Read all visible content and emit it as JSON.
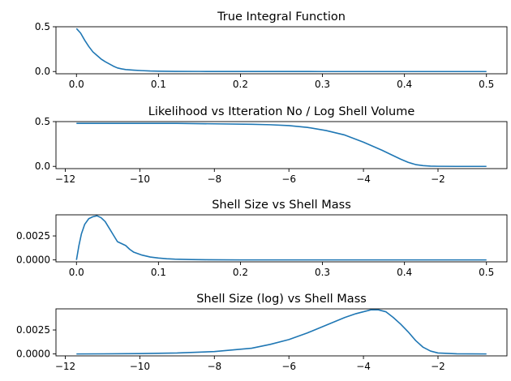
{
  "chart_data": [
    {
      "type": "line",
      "title": "True Integral Function",
      "xlabel": "",
      "ylabel": "",
      "xlim": [
        -0.025,
        0.525
      ],
      "ylim": [
        -0.025,
        0.5
      ],
      "xticks": [
        0.0,
        0.1,
        0.2,
        0.3,
        0.4,
        0.5
      ],
      "xtick_labels": [
        "0.0",
        "0.1",
        "0.2",
        "0.3",
        "0.4",
        "0.5"
      ],
      "yticks": [
        0.0,
        0.5
      ],
      "ytick_labels": [
        "0.0",
        "0.5"
      ],
      "grid": false,
      "color": "#1f77b4",
      "series": [
        {
          "x": [
            0.0,
            0.005,
            0.01,
            0.015,
            0.02,
            0.025,
            0.03,
            0.035,
            0.04,
            0.045,
            0.05,
            0.055,
            0.06,
            0.07,
            0.08,
            0.09,
            0.1,
            0.12,
            0.15,
            0.2,
            0.3,
            0.4,
            0.5
          ],
          "y": [
            0.48,
            0.43,
            0.35,
            0.28,
            0.22,
            0.18,
            0.14,
            0.11,
            0.085,
            0.06,
            0.04,
            0.03,
            0.022,
            0.015,
            0.01,
            0.006,
            0.004,
            0.002,
            0.001,
            0.0005,
            0.0,
            0.0,
            0.0
          ]
        }
      ]
    },
    {
      "type": "line",
      "title": "Likelihood vs Itteration No / Log Shell Volume",
      "xlabel": "",
      "ylabel": "",
      "xlim": [
        -12.25,
        -0.15
      ],
      "ylim": [
        -0.025,
        0.5
      ],
      "xticks": [
        -12,
        -10,
        -8,
        -6,
        -4,
        -2
      ],
      "xtick_labels": [
        "−12",
        "−10",
        "−8",
        "−6",
        "−4",
        "−2"
      ],
      "yticks": [
        0.0,
        0.5
      ],
      "ytick_labels": [
        "0.0",
        "0.5"
      ],
      "grid": false,
      "color": "#1f77b4",
      "series": [
        {
          "x": [
            -11.7,
            -11.0,
            -10.0,
            -9.0,
            -8.0,
            -7.0,
            -6.5,
            -6.0,
            -5.5,
            -5.0,
            -4.5,
            -4.0,
            -3.5,
            -3.2,
            -3.0,
            -2.8,
            -2.6,
            -2.4,
            -2.2,
            -2.0,
            -1.5,
            -0.7
          ],
          "y": [
            0.48,
            0.48,
            0.48,
            0.48,
            0.475,
            0.47,
            0.465,
            0.455,
            0.435,
            0.4,
            0.35,
            0.27,
            0.18,
            0.12,
            0.08,
            0.045,
            0.02,
            0.008,
            0.003,
            0.001,
            0.0,
            0.0
          ]
        }
      ]
    },
    {
      "type": "line",
      "title": "Shell Size vs Shell Mass",
      "xlabel": "",
      "ylabel": "",
      "xlim": [
        -0.025,
        0.525
      ],
      "ylim": [
        -0.0002,
        0.0047
      ],
      "xticks": [
        0.0,
        0.1,
        0.2,
        0.3,
        0.4,
        0.5
      ],
      "xtick_labels": [
        "0.0",
        "0.1",
        "0.2",
        "0.3",
        "0.4",
        "0.5"
      ],
      "yticks": [
        0.0,
        0.0025
      ],
      "ytick_labels": [
        "0.0000",
        "0.0025"
      ],
      "grid": false,
      "color": "#1f77b4",
      "series": [
        {
          "x": [
            0.0,
            0.003,
            0.006,
            0.01,
            0.015,
            0.02,
            0.025,
            0.03,
            0.035,
            0.04,
            0.045,
            0.05,
            0.055,
            0.06,
            0.065,
            0.07,
            0.08,
            0.09,
            0.1,
            0.11,
            0.12,
            0.14,
            0.16,
            0.2,
            0.3,
            0.4,
            0.5
          ],
          "y": [
            0.0,
            0.0015,
            0.0027,
            0.0037,
            0.0043,
            0.0045,
            0.0046,
            0.0044,
            0.004,
            0.0033,
            0.0026,
            0.0019,
            0.0017,
            0.0015,
            0.0011,
            0.0008,
            0.0005,
            0.0003,
            0.0002,
            0.00012,
            8e-05,
            4e-05,
            2e-05,
            0.0,
            0.0,
            0.0,
            0.0
          ]
        }
      ]
    },
    {
      "type": "line",
      "title": "Shell Size (log) vs Shell Mass",
      "xlabel": "",
      "ylabel": "",
      "xlim": [
        -12.25,
        -0.15
      ],
      "ylim": [
        -0.0002,
        0.0047
      ],
      "xticks": [
        -12,
        -10,
        -8,
        -6,
        -4,
        -2
      ],
      "xtick_labels": [
        "−12",
        "−10",
        "−8",
        "−6",
        "−4",
        "−2"
      ],
      "yticks": [
        0.0,
        0.0025
      ],
      "ytick_labels": [
        "0.0000",
        "0.0025"
      ],
      "grid": false,
      "color": "#1f77b4",
      "series": [
        {
          "x": [
            -11.7,
            -11.0,
            -10.0,
            -9.0,
            -8.0,
            -7.0,
            -6.5,
            -6.0,
            -5.5,
            -5.0,
            -4.5,
            -4.2,
            -4.0,
            -3.8,
            -3.6,
            -3.4,
            -3.2,
            -3.0,
            -2.8,
            -2.6,
            -2.4,
            -2.2,
            -2.0,
            -1.5,
            -0.7
          ],
          "y": [
            0.0,
            1e-05,
            4e-05,
            0.0001,
            0.00025,
            0.0006,
            0.001,
            0.0015,
            0.0022,
            0.003,
            0.0038,
            0.0042,
            0.0044,
            0.0046,
            0.0046,
            0.0044,
            0.0038,
            0.0031,
            0.0023,
            0.0014,
            0.0007,
            0.0003,
            0.0001,
            2e-05,
            0.0
          ]
        }
      ]
    }
  ]
}
